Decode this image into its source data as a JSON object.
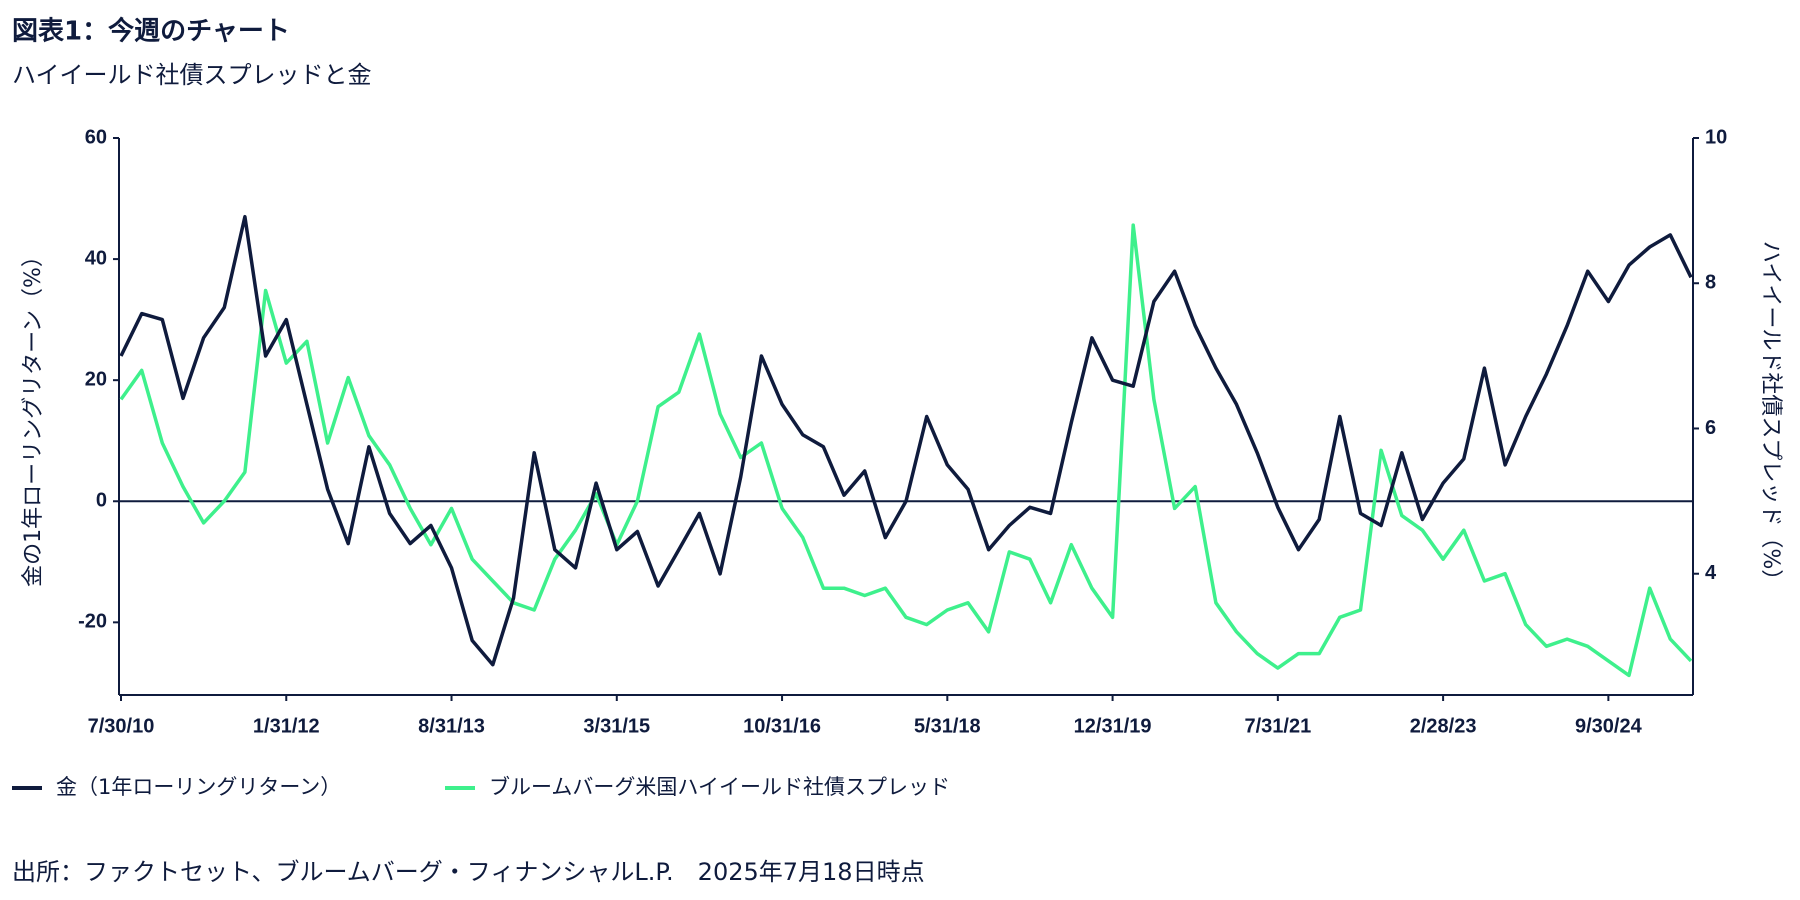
{
  "chart_data": {
    "type": "line",
    "title": "図表1：今週のチャート",
    "subtitle": "ハイイールド社債スプレッドと金",
    "y_label": "金の1年ローリングリターン（%）",
    "y2_label": "ハイイールド社債スプレッド（%）",
    "source": "出所：ファクトセット、ブルームバーグ・フィナンシャルL.P.　2025年7月18日時点",
    "categories": [
      "7/30/10",
      null,
      null,
      null,
      null,
      null,
      null,
      null,
      "1/31/12",
      null,
      null,
      null,
      null,
      null,
      null,
      null,
      "8/31/13",
      null,
      null,
      null,
      null,
      null,
      null,
      null,
      "3/31/15",
      null,
      null,
      null,
      null,
      null,
      null,
      null,
      "10/31/16",
      null,
      null,
      null,
      null,
      null,
      null,
      null,
      "5/31/18",
      null,
      null,
      null,
      null,
      null,
      null,
      null,
      "12/31/19",
      null,
      null,
      null,
      null,
      null,
      null,
      null,
      "7/31/21",
      null,
      null,
      null,
      null,
      null,
      null,
      null,
      "2/28/23",
      null,
      null,
      null,
      null,
      null,
      null,
      null,
      "9/30/24",
      null,
      null,
      null,
      null
    ],
    "series": [
      {
        "name": "金（1年ローリングリターン）",
        "color": "#0f1b3d",
        "axis": "y",
        "values": [
          24,
          31,
          30,
          17,
          27,
          32,
          47,
          24,
          30,
          16,
          2,
          -7,
          9,
          -2,
          -7,
          -4,
          -11,
          -23,
          -27,
          -16,
          8,
          -8,
          -11,
          3,
          -8,
          -5,
          -14,
          -8,
          -2,
          -12,
          4,
          24,
          16,
          11,
          9,
          1,
          5,
          -6,
          0,
          14,
          6,
          2,
          -8,
          -4,
          -1,
          -2,
          13,
          27,
          20,
          19,
          33,
          38,
          29,
          22,
          16,
          8,
          -1,
          -8,
          -3,
          14,
          -2,
          -4,
          8,
          -3,
          3,
          7,
          22,
          6,
          14,
          21,
          29,
          38,
          33,
          39,
          42,
          44,
          37
        ]
      },
      {
        "name": "ブルームバーグ米国ハイイールド社債スプレッド",
        "color": "#3ef08c",
        "axis": "y2",
        "values": [
          6.4,
          6.8,
          5.8,
          5.2,
          4.7,
          5.0,
          5.4,
          7.9,
          6.9,
          7.2,
          5.8,
          6.7,
          5.9,
          5.5,
          4.9,
          4.4,
          4.9,
          4.2,
          3.9,
          3.6,
          3.5,
          4.2,
          4.6,
          5.1,
          4.4,
          5.0,
          6.3,
          6.5,
          7.3,
          6.2,
          5.6,
          5.8,
          4.9,
          4.5,
          3.8,
          3.8,
          3.7,
          3.8,
          3.4,
          3.3,
          3.5,
          3.6,
          3.2,
          4.3,
          4.2,
          3.6,
          4.4,
          3.8,
          3.4,
          8.8,
          6.4,
          4.9,
          5.2,
          3.6,
          3.2,
          2.9,
          2.7,
          2.9,
          2.9,
          3.4,
          3.5,
          5.7,
          4.8,
          4.6,
          4.2,
          4.6,
          3.9,
          4.0,
          3.3,
          3.0,
          3.1,
          3.0,
          2.8,
          2.6,
          3.8,
          3.1,
          2.8
        ]
      }
    ],
    "ylim": [
      -32,
      60
    ],
    "yticks": [
      -20,
      0,
      20,
      40,
      60
    ],
    "y2lim": [
      2.33,
      10
    ],
    "y2ticks": [
      4,
      6,
      8,
      10
    ]
  }
}
